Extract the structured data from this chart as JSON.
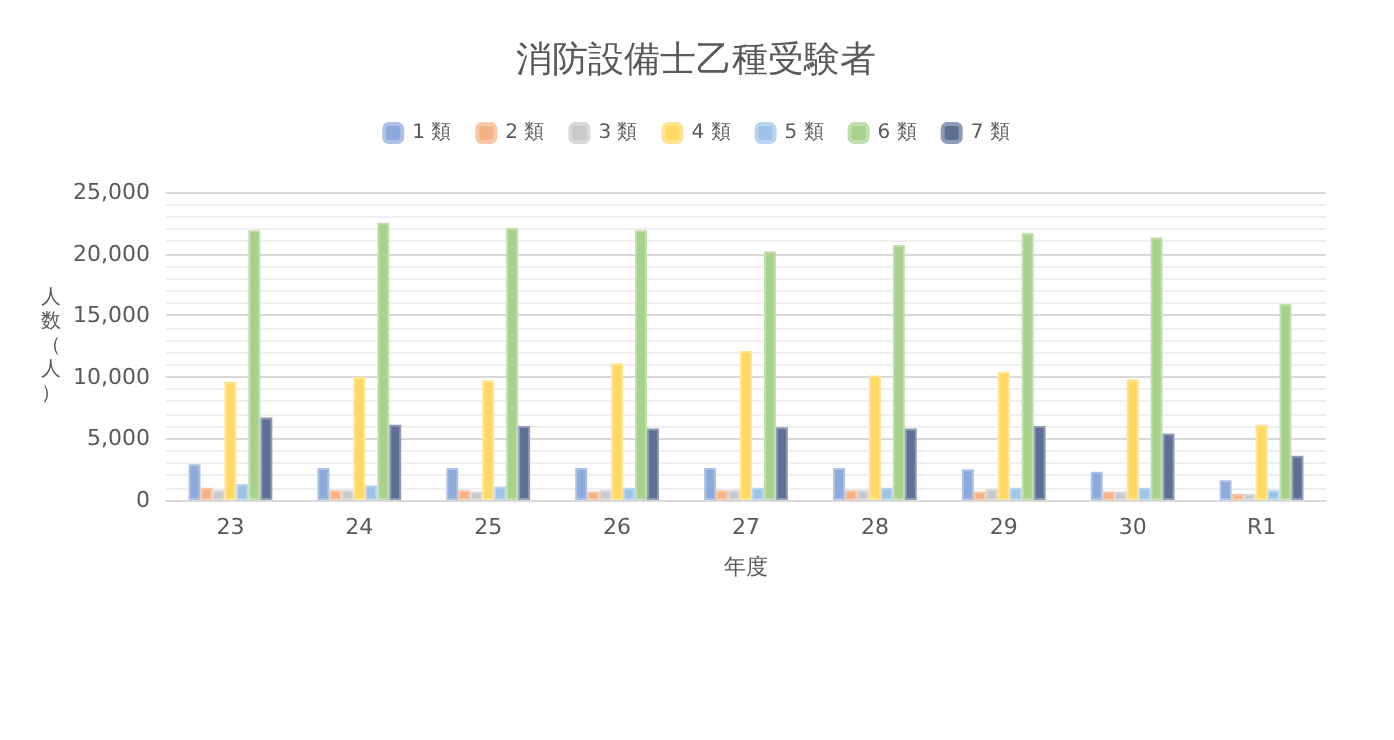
{
  "chart_data": {
    "type": "bar",
    "title": "消防設備士乙種受験者",
    "xlabel": "年度",
    "ylabel": "人数（人）",
    "categories": [
      "23",
      "24",
      "25",
      "26",
      "27",
      "28",
      "29",
      "30",
      "R1"
    ],
    "series": [
      {
        "name": "1 類",
        "color": "#8ea9db",
        "values": [
          2900,
          2600,
          2600,
          2600,
          2600,
          2600,
          2500,
          2300,
          1600
        ]
      },
      {
        "name": "2 類",
        "color": "#f4b183",
        "values": [
          1000,
          800,
          800,
          700,
          800,
          800,
          700,
          700,
          500
        ]
      },
      {
        "name": "3 類",
        "color": "#c9c9c9",
        "values": [
          800,
          800,
          700,
          800,
          800,
          800,
          900,
          700,
          500
        ]
      },
      {
        "name": "4 類",
        "color": "#ffd966",
        "values": [
          9600,
          10000,
          9700,
          11100,
          12100,
          10100,
          10400,
          9800,
          6100
        ]
      },
      {
        "name": "5 類",
        "color": "#9dc3e6",
        "values": [
          1300,
          1200,
          1100,
          1000,
          1000,
          1000,
          1000,
          1000,
          800
        ]
      },
      {
        "name": "6 類",
        "color": "#a9d18e",
        "values": [
          21900,
          22500,
          22100,
          21900,
          20200,
          20700,
          21700,
          21300,
          15900
        ]
      },
      {
        "name": "7 類",
        "color": "#5f6f94",
        "values": [
          6700,
          6100,
          6000,
          5800,
          5900,
          5800,
          6000,
          5400,
          3600
        ]
      }
    ],
    "ylim": [
      0,
      25000
    ],
    "yticks": [
      {
        "value": 0,
        "label": "0"
      },
      {
        "value": 5000,
        "label": "5,000"
      },
      {
        "value": 10000,
        "label": "10,000"
      },
      {
        "value": 15000,
        "label": "15,000"
      },
      {
        "value": 20000,
        "label": "20,000"
      },
      {
        "value": 25000,
        "label": "25,000"
      }
    ],
    "grid": "y",
    "legend": "top"
  }
}
